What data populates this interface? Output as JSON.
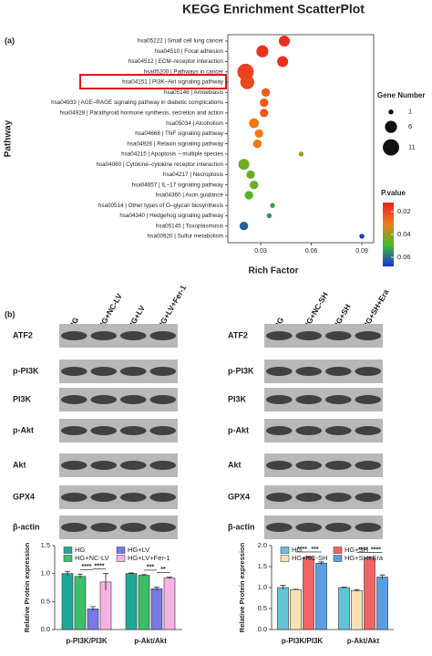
{
  "chart_data": [
    {
      "type": "scatter",
      "title": "KEGG Enrichment ScatterPlot",
      "x_label": "Rich Factor",
      "y_label": "Pathway",
      "categories": [
        "hsa05222 | Small cell lung cancer",
        "hsa04510 | Focal adhesion",
        "hsa04512 | ECM–receptor interaction",
        "hsa05200 | Pathways in cancer",
        "hsa04151 | PI3K–Akt signaling pathway",
        "hsa05146 | Amoebiasis",
        "hsa04933 | AGE–RAGE signaling pathway in diabetic complications",
        "hsa04928 | Parathyroid hormone synthesis, secretion and action",
        "hsa05034 | Alcoholism",
        "hsa04668 | TNF signaling pathway",
        "hsa04926 | Relaxin signaling pathway",
        "hsa04215 | Apoptosis – multiple species",
        "hsa04060 | Cytokine–cytokine receptor interaction",
        "hsa04217 | Necroptosis",
        "hsa04657 | IL–17 signaling pathway",
        "hsa04360 | Axon guidance",
        "hsa00514 | Other types of O–glycan biosynthesis",
        "hsa04340 | Hedgehog signaling pathway",
        "hsa05145 | Toxoplasmosis",
        "hsa00920 | Sulfur metabolism"
      ],
      "x": [
        0.044,
        0.031,
        0.043,
        0.021,
        0.022,
        0.033,
        0.032,
        0.032,
        0.026,
        0.029,
        0.028,
        0.054,
        0.02,
        0.024,
        0.026,
        0.023,
        0.037,
        0.035,
        0.02,
        0.09
      ],
      "sizes": [
        5,
        6,
        5,
        11,
        8,
        3,
        3,
        3,
        4,
        3,
        3,
        1,
        5,
        3,
        3,
        3,
        1,
        1,
        3,
        1
      ],
      "p_values": [
        0.014,
        0.015,
        0.015,
        0.018,
        0.02,
        0.024,
        0.024,
        0.024,
        0.03,
        0.03,
        0.03,
        0.038,
        0.044,
        0.045,
        0.045,
        0.047,
        0.053,
        0.056,
        0.062,
        0.067
      ],
      "xlim": [
        0.0105,
        0.097
      ],
      "xticks": [
        0.03,
        0.06,
        0.09
      ],
      "size_legend": {
        "title": "Gene Number",
        "values": [
          1,
          6,
          11
        ]
      },
      "color_legend": {
        "title": "P.value",
        "lim": [
          0.012,
          0.068
        ],
        "ticks": [
          0.02,
          0.04,
          0.06
        ],
        "colors": [
          "#e8231f",
          "#f07a1a",
          "#3fbf2a",
          "#1a2fd8"
        ]
      }
    },
    {
      "type": "bar",
      "y_label": "Relative Protein expression",
      "categories": [
        "p-PI3K/PI3K",
        "p-Akt/Akt"
      ],
      "series": [
        {
          "name": "HG",
          "color": "#1fa79a",
          "values": [
            1.0,
            1.0
          ],
          "errors": [
            0.04,
            0.01
          ]
        },
        {
          "name": "HG+NC-LV",
          "color": "#3cbf6a",
          "values": [
            0.95,
            0.97
          ],
          "errors": [
            0.04,
            0.01
          ]
        },
        {
          "name": "HG+LV",
          "color": "#7a78e6",
          "values": [
            0.37,
            0.73
          ],
          "errors": [
            0.04,
            0.03
          ]
        },
        {
          "name": "HG+LV+Fer-1",
          "color": "#f6b3e2",
          "values": [
            0.85,
            0.92
          ],
          "errors": [
            0.15,
            0.02
          ]
        }
      ],
      "significance": [
        [
          "****",
          "****"
        ],
        [
          "***",
          "**"
        ]
      ],
      "ylim": [
        0,
        1.5
      ],
      "yticks": [
        {
          "value": 0,
          "label": "0.0"
        },
        {
          "value": 0.5,
          "label": "0.5"
        },
        {
          "value": 1,
          "label": "1.0"
        },
        {
          "value": 1.5,
          "label": "1.5"
        }
      ]
    },
    {
      "type": "bar",
      "y_label": "Relative Protein expression",
      "categories": [
        "p-PI3K/PI3K",
        "p-Akt/Akt"
      ],
      "series": [
        {
          "name": "HG",
          "color": "#63c3d8",
          "values": [
            1.0,
            1.0
          ],
          "errors": [
            0.05,
            0.01
          ]
        },
        {
          "name": "HG+NC-SH",
          "color": "#f5e2b4",
          "values": [
            0.95,
            0.93
          ],
          "errors": [
            0.01,
            0.02
          ]
        },
        {
          "name": "HG+SH",
          "color": "#f06464",
          "values": [
            1.72,
            1.7
          ],
          "errors": [
            0.02,
            0.03
          ]
        },
        {
          "name": "HG+SH+Era",
          "color": "#5b9fe2",
          "values": [
            1.58,
            1.25
          ],
          "errors": [
            0.03,
            0.05
          ]
        }
      ],
      "significance": [
        [
          "****",
          "***"
        ],
        [
          "****",
          "****"
        ]
      ],
      "ylim": [
        0,
        2.0
      ],
      "yticks": [
        {
          "value": 0,
          "label": "0.0"
        },
        {
          "value": 0.5,
          "label": "0.5"
        },
        {
          "value": 1,
          "label": "1.0"
        },
        {
          "value": 1.5,
          "label": "1.5"
        },
        {
          "value": 2,
          "label": "2.0"
        }
      ]
    }
  ],
  "figure": {
    "panel_labels": [
      "(a)",
      "(b)"
    ],
    "blots": [
      {
        "lanes": [
          "HG",
          "HG+NC-LV",
          "HG+LV",
          "HG+LV+Fer-1"
        ],
        "proteins": [
          "ATF2",
          "p-PI3K",
          "PI3K",
          "p-Akt",
          "Akt",
          "GPX4",
          "β-actin"
        ]
      },
      {
        "lanes": [
          "HG",
          "HG+NC-SH",
          "HG+SH",
          "HG+SH+Era"
        ],
        "proteins": [
          "ATF2",
          "p-PI3K",
          "PI3K",
          "p-Akt",
          "Akt",
          "GPX4",
          "β-actin"
        ]
      }
    ]
  }
}
